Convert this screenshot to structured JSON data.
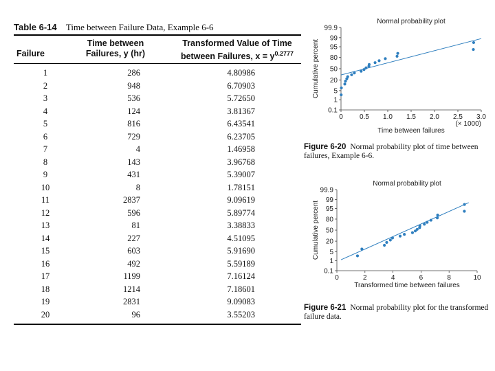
{
  "table": {
    "number": "Table 6-14",
    "title": "Time between Failure Data, Example 6-6",
    "headers": {
      "failure": "Failure",
      "time_line1": "Time between",
      "time_line2": "Failures, y (hr)",
      "transformed_line1": "Transformed Value of Time",
      "transformed_line2": "between Failures, x = y",
      "exponent": "0.2777"
    },
    "rows": [
      [
        "1",
        "286",
        "4.80986"
      ],
      [
        "2",
        "948",
        "6.70903"
      ],
      [
        "3",
        "536",
        "5.72650"
      ],
      [
        "4",
        "124",
        "3.81367"
      ],
      [
        "5",
        "816",
        "6.43541"
      ],
      [
        "6",
        "729",
        "6.23705"
      ],
      [
        "7",
        "4",
        "1.46958"
      ],
      [
        "8",
        "143",
        "3.96768"
      ],
      [
        "9",
        "431",
        "5.39007"
      ],
      [
        "10",
        "8",
        "1.78151"
      ],
      [
        "11",
        "2837",
        "9.09619"
      ],
      [
        "12",
        "596",
        "5.89774"
      ],
      [
        "13",
        "81",
        "3.38833"
      ],
      [
        "14",
        "227",
        "4.51095"
      ],
      [
        "15",
        "603",
        "5.91690"
      ],
      [
        "16",
        "492",
        "5.59189"
      ],
      [
        "17",
        "1199",
        "7.16124"
      ],
      [
        "18",
        "1214",
        "7.18601"
      ],
      [
        "19",
        "2831",
        "9.09083"
      ],
      [
        "20",
        "96",
        "3.55203"
      ]
    ]
  },
  "chart_data": [
    {
      "type": "scatter",
      "title": "Normal probability plot",
      "xlabel": "Time between failures",
      "ylabel": "Cumulative percent",
      "x_multiplier": "(× 1000)",
      "xlim": [
        0,
        3.0
      ],
      "xticks": [
        "0",
        "0.5",
        "1.0",
        "1.5",
        "2.0",
        "2.5",
        "3.0"
      ],
      "xtick_values": [
        0,
        0.5,
        1.0,
        1.5,
        2.0,
        2.5,
        3.0
      ],
      "yticks": [
        "0.1",
        "1",
        "5",
        "20",
        "50",
        "80",
        "95",
        "99",
        "99.9"
      ],
      "ytick_values": [
        0.1,
        1,
        5,
        20,
        50,
        80,
        95,
        99,
        99.9
      ],
      "points": [
        {
          "x": 0.004,
          "y": 2.5
        },
        {
          "x": 0.008,
          "y": 7.5
        },
        {
          "x": 0.081,
          "y": 12.5
        },
        {
          "x": 0.096,
          "y": 17.5
        },
        {
          "x": 0.124,
          "y": 22.5
        },
        {
          "x": 0.143,
          "y": 27.5
        },
        {
          "x": 0.227,
          "y": 32.5
        },
        {
          "x": 0.286,
          "y": 37.5
        },
        {
          "x": 0.431,
          "y": 42.5
        },
        {
          "x": 0.492,
          "y": 47.5
        },
        {
          "x": 0.536,
          "y": 52.5
        },
        {
          "x": 0.596,
          "y": 57.5
        },
        {
          "x": 0.603,
          "y": 62.5
        },
        {
          "x": 0.729,
          "y": 67.5
        },
        {
          "x": 0.816,
          "y": 72.5
        },
        {
          "x": 0.948,
          "y": 77.5
        },
        {
          "x": 1.199,
          "y": 82.5
        },
        {
          "x": 1.214,
          "y": 87.5
        },
        {
          "x": 2.831,
          "y": 92.5
        },
        {
          "x": 2.837,
          "y": 97.5
        }
      ],
      "fit_line": [
        {
          "x": 0,
          "y": 32
        },
        {
          "x": 3.0,
          "y": 98.8
        }
      ],
      "color": "#2f7fbf"
    },
    {
      "type": "scatter",
      "title": "Normal probability plot",
      "xlabel": "Transformed time between failures",
      "ylabel": "Cumulative percent",
      "xlim": [
        0,
        10
      ],
      "xticks": [
        "0",
        "2",
        "4",
        "6",
        "8",
        "10"
      ],
      "xtick_values": [
        0,
        2,
        4,
        6,
        8,
        10
      ],
      "yticks": [
        "0.1",
        "1",
        "5",
        "20",
        "50",
        "80",
        "95",
        "99",
        "99.9"
      ],
      "ytick_values": [
        0.1,
        1,
        5,
        20,
        50,
        80,
        95,
        99,
        99.9
      ],
      "points": [
        {
          "x": 1.46958,
          "y": 2.5
        },
        {
          "x": 1.78151,
          "y": 7.5
        },
        {
          "x": 3.38833,
          "y": 12.5
        },
        {
          "x": 3.55203,
          "y": 17.5
        },
        {
          "x": 3.81367,
          "y": 22.5
        },
        {
          "x": 3.96768,
          "y": 27.5
        },
        {
          "x": 4.51095,
          "y": 32.5
        },
        {
          "x": 4.80986,
          "y": 37.5
        },
        {
          "x": 5.39007,
          "y": 42.5
        },
        {
          "x": 5.59189,
          "y": 47.5
        },
        {
          "x": 5.7265,
          "y": 52.5
        },
        {
          "x": 5.89774,
          "y": 57.5
        },
        {
          "x": 5.9169,
          "y": 62.5
        },
        {
          "x": 6.23705,
          "y": 67.5
        },
        {
          "x": 6.43541,
          "y": 72.5
        },
        {
          "x": 6.70903,
          "y": 77.5
        },
        {
          "x": 7.16124,
          "y": 82.5
        },
        {
          "x": 7.18601,
          "y": 87.5
        },
        {
          "x": 9.09083,
          "y": 92.5
        },
        {
          "x": 9.09619,
          "y": 97.5
        }
      ],
      "fit_line": [
        {
          "x": 0.3,
          "y": 1.2
        },
        {
          "x": 9.4,
          "y": 98.2
        }
      ],
      "color": "#2f7fbf"
    }
  ],
  "figures": [
    {
      "number": "Figure 6-20",
      "caption": "Normal probability plot of time between failures, Example 6-6."
    },
    {
      "number": "Figure 6-21",
      "caption": "Normal probability plot for the transformed failure data."
    }
  ]
}
